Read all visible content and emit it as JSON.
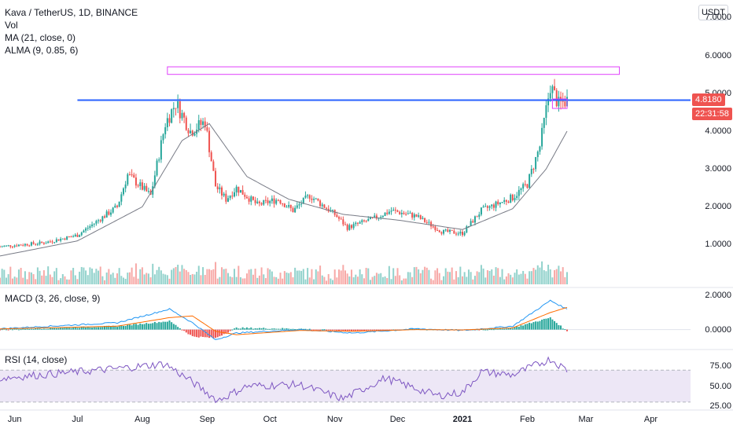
{
  "header": {
    "title": "Kava / TetherUS, 1D, BINANCE",
    "vol_label": "Vol",
    "ma_label": "MA (21, close, 0)",
    "alma_label": "ALMA (9, 0.85, 6)",
    "macd_label": "MACD (3, 26, close, 9)",
    "rsi_label": "RSI (14, close)"
  },
  "price_axis": {
    "unit": "USDT",
    "ticks": [
      "7.0000",
      "6.0000",
      "5.0000",
      "4.0000",
      "3.0000",
      "2.0000",
      "1.0000"
    ],
    "last_price": "4.8180",
    "countdown": "22:31:58"
  },
  "macd_axis": {
    "ticks": [
      "2.0000",
      "0.0000"
    ]
  },
  "rsi_axis": {
    "ticks": [
      "75.00",
      "50.00",
      "25.00"
    ]
  },
  "time_axis": {
    "labels": [
      "Jun",
      "Jul",
      "Aug",
      "Sep",
      "Oct",
      "Nov",
      "Dec",
      "2021",
      "Feb",
      "Mar",
      "Apr"
    ]
  },
  "colors": {
    "up": "#26a69a",
    "down": "#ef5350",
    "ma": "#787b86",
    "level_line": "#2962ff",
    "zone": "#e040fb",
    "macd": "#2196f3",
    "signal": "#ff6d00",
    "rsi": "#7e57c2",
    "rsi_band": "#ede7f6"
  },
  "chart_data": {
    "type": "candlestick",
    "title": "Kava / TetherUS, 1D, BINANCE",
    "ylim": [
      0.2,
      7.3
    ],
    "x_range": [
      "2020-05-25",
      "2021-04-20"
    ],
    "close_anchors": [
      {
        "date": "2020-05-25",
        "close": 0.95
      },
      {
        "date": "2020-06-15",
        "close": 1.05
      },
      {
        "date": "2020-07-01",
        "close": 1.25
      },
      {
        "date": "2020-07-20",
        "close": 2.0
      },
      {
        "date": "2020-07-25",
        "close": 2.85
      },
      {
        "date": "2020-08-05",
        "close": 2.3
      },
      {
        "date": "2020-08-12",
        "close": 4.2
      },
      {
        "date": "2020-08-17",
        "close": 4.75
      },
      {
        "date": "2020-08-24",
        "close": 4.0
      },
      {
        "date": "2020-08-31",
        "close": 4.25
      },
      {
        "date": "2020-09-05",
        "close": 2.55
      },
      {
        "date": "2020-09-10",
        "close": 2.2
      },
      {
        "date": "2020-09-15",
        "close": 2.5
      },
      {
        "date": "2020-09-25",
        "close": 2.05
      },
      {
        "date": "2020-10-05",
        "close": 2.2
      },
      {
        "date": "2020-10-12",
        "close": 1.9
      },
      {
        "date": "2020-10-20",
        "close": 2.3
      },
      {
        "date": "2020-11-01",
        "close": 1.8
      },
      {
        "date": "2020-11-07",
        "close": 1.45
      },
      {
        "date": "2020-11-20",
        "close": 1.7
      },
      {
        "date": "2020-11-28",
        "close": 1.9
      },
      {
        "date": "2020-12-10",
        "close": 1.75
      },
      {
        "date": "2020-12-22",
        "close": 1.35
      },
      {
        "date": "2021-01-01",
        "close": 1.3
      },
      {
        "date": "2021-01-10",
        "close": 1.9
      },
      {
        "date": "2021-01-25",
        "close": 2.25
      },
      {
        "date": "2021-02-01",
        "close": 2.6
      },
      {
        "date": "2021-02-07",
        "close": 3.6
      },
      {
        "date": "2021-02-12",
        "close": 5.2
      },
      {
        "date": "2021-02-16",
        "close": 4.7
      },
      {
        "date": "2021-02-20",
        "close": 4.818
      }
    ],
    "ma_anchors": [
      {
        "date": "2020-05-25",
        "value": 0.7
      },
      {
        "date": "2020-07-01",
        "value": 1.1
      },
      {
        "date": "2020-08-01",
        "value": 2.0
      },
      {
        "date": "2020-08-20",
        "value": 3.75
      },
      {
        "date": "2020-09-02",
        "value": 4.2
      },
      {
        "date": "2020-09-20",
        "value": 2.8
      },
      {
        "date": "2020-10-10",
        "value": 2.2
      },
      {
        "date": "2020-11-05",
        "value": 1.8
      },
      {
        "date": "2020-12-01",
        "value": 1.65
      },
      {
        "date": "2021-01-01",
        "value": 1.4
      },
      {
        "date": "2021-01-25",
        "value": 1.95
      },
      {
        "date": "2021-02-10",
        "value": 3.0
      },
      {
        "date": "2021-02-20",
        "value": 4.0
      }
    ],
    "horizontal_level": {
      "price": 4.82,
      "from": "2020-07-01",
      "to": "2021-04-20"
    },
    "resistance_zone": {
      "price_low": 5.5,
      "price_high": 5.7,
      "from": "2020-08-13",
      "to": "2021-03-17"
    },
    "small_box": {
      "price_low": 4.6,
      "price_high": 4.85,
      "from": "2021-02-13",
      "to": "2021-02-20"
    },
    "macd": {
      "ylim": [
        -0.8,
        2.1
      ],
      "anchors": [
        {
          "date": "2020-05-25",
          "macd": 0.05,
          "signal": 0.04
        },
        {
          "date": "2020-07-20",
          "macd": 0.4,
          "signal": 0.2
        },
        {
          "date": "2020-08-14",
          "macd": 1.2,
          "signal": 0.7
        },
        {
          "date": "2020-08-25",
          "macd": 0.4,
          "signal": 0.8
        },
        {
          "date": "2020-09-05",
          "macd": -0.6,
          "signal": -0.1
        },
        {
          "date": "2020-09-15",
          "macd": -0.2,
          "signal": -0.3
        },
        {
          "date": "2020-10-15",
          "macd": 0.0,
          "signal": -0.05
        },
        {
          "date": "2020-11-10",
          "macd": -0.2,
          "signal": -0.1
        },
        {
          "date": "2020-12-10",
          "macd": 0.05,
          "signal": 0.0
        },
        {
          "date": "2021-01-01",
          "macd": -0.05,
          "signal": -0.02
        },
        {
          "date": "2021-01-25",
          "macd": 0.2,
          "signal": 0.1
        },
        {
          "date": "2021-02-12",
          "macd": 1.7,
          "signal": 1.0
        },
        {
          "date": "2021-02-20",
          "macd": 1.2,
          "signal": 1.3
        }
      ]
    },
    "rsi": {
      "ylim": [
        24,
        90
      ],
      "band": [
        30,
        70
      ],
      "anchors": [
        {
          "date": "2020-05-25",
          "value": 60
        },
        {
          "date": "2020-07-20",
          "value": 72
        },
        {
          "date": "2020-08-12",
          "value": 78
        },
        {
          "date": "2020-08-25",
          "value": 55
        },
        {
          "date": "2020-09-06",
          "value": 32
        },
        {
          "date": "2020-09-20",
          "value": 50
        },
        {
          "date": "2020-10-15",
          "value": 52
        },
        {
          "date": "2020-11-05",
          "value": 34
        },
        {
          "date": "2020-11-25",
          "value": 60
        },
        {
          "date": "2020-12-20",
          "value": 38
        },
        {
          "date": "2021-01-01",
          "value": 42
        },
        {
          "date": "2021-01-10",
          "value": 68
        },
        {
          "date": "2021-01-25",
          "value": 64
        },
        {
          "date": "2021-02-12",
          "value": 84
        },
        {
          "date": "2021-02-20",
          "value": 70
        }
      ]
    }
  }
}
